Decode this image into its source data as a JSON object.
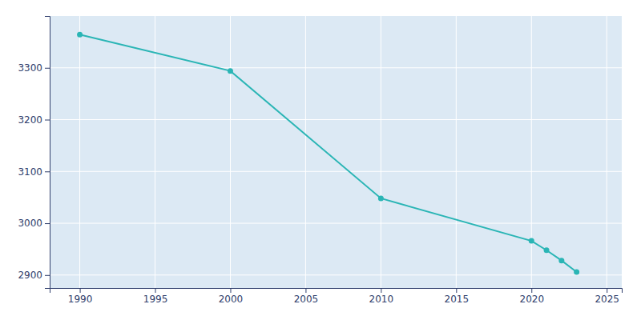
{
  "chart_data": {
    "type": "line",
    "x": [
      1990,
      2000,
      2010,
      2020,
      2021,
      2022,
      2023
    ],
    "values": [
      3364,
      3294,
      3048,
      2966,
      2948,
      2928,
      2906
    ],
    "color": "#2ab5b5",
    "marker": "circle",
    "xlim": [
      1988,
      2026
    ],
    "xticks": [
      1990,
      1995,
      2000,
      2005,
      2010,
      2015,
      2020,
      2025
    ],
    "ylim": [
      2875,
      3400
    ],
    "yticks": [
      2900,
      3000,
      3100,
      3200,
      3300
    ],
    "grid": true
  }
}
